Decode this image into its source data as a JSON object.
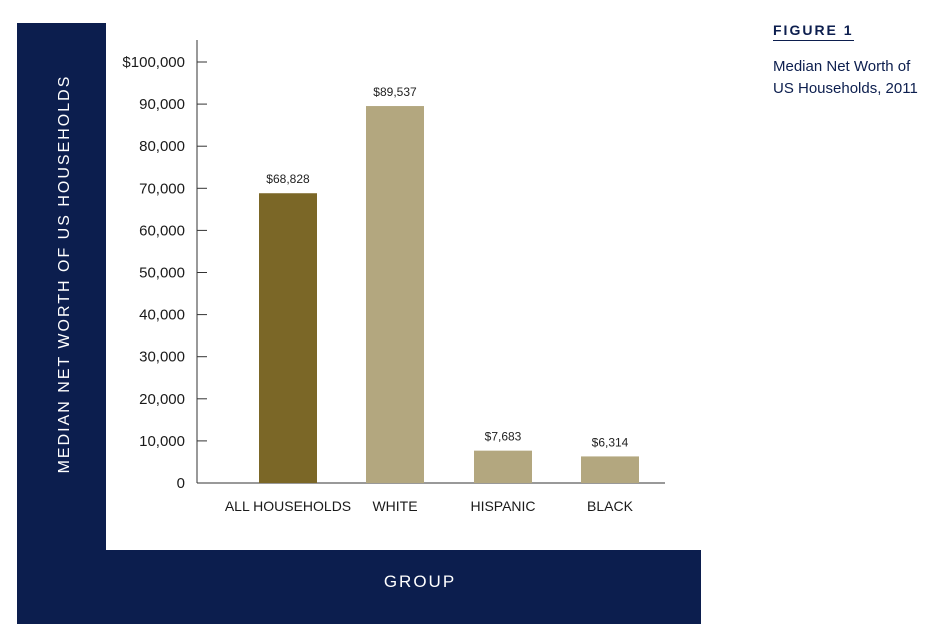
{
  "figure": {
    "label": "FIGURE 1",
    "title": "Median Net Worth of US Households, 2011"
  },
  "colors": {
    "frame": "#0c1e4e",
    "bar_highlight": "#7b6727",
    "bar_default": "#b3a77f"
  },
  "chart_data": {
    "type": "bar",
    "title": "Median Net Worth of US Households, 2011",
    "xlabel": "GROUP",
    "ylabel": "MEDIAN NET WORTH OF US HOUSEHOLDS",
    "categories": [
      "ALL HOUSEHOLDS",
      "WHITE",
      "HISPANIC",
      "BLACK"
    ],
    "values": [
      68828,
      89537,
      7683,
      6314
    ],
    "data_labels": [
      "$68,828",
      "$89,537",
      "$7,683",
      "$6,314"
    ],
    "highlight_index": 0,
    "ylim": [
      0,
      100000
    ],
    "yticks": [
      0,
      10000,
      20000,
      30000,
      40000,
      50000,
      60000,
      70000,
      80000,
      90000,
      100000
    ],
    "ytick_labels": [
      "0",
      "10,000",
      "20,000",
      "30,000",
      "40,000",
      "50,000",
      "60,000",
      "70,000",
      "80,000",
      "90,000",
      "$100,000"
    ],
    "grid": false,
    "legend": "none"
  }
}
